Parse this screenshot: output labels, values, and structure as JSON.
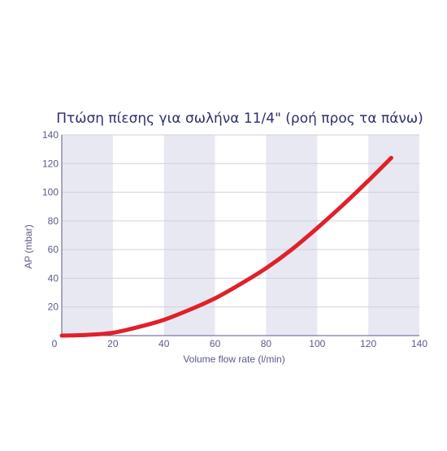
{
  "chart_data": {
    "type": "line",
    "title": "Πτώση πίεσης για σωλήνα 11/4\" (ροή προς τα πάνω)",
    "xlabel": "Volume flow rate (l/min)",
    "ylabel": "AP (mbar)",
    "xlim": [
      0,
      140
    ],
    "ylim": [
      0,
      140
    ],
    "xticks": [
      0,
      20,
      40,
      60,
      80,
      100,
      120,
      140
    ],
    "yticks": [
      20,
      40,
      60,
      80,
      100,
      120,
      140
    ],
    "xtick_labels": [
      "0",
      "20",
      "40",
      "60",
      "80",
      "100",
      "120",
      "140"
    ],
    "ytick_labels": [
      "20",
      "40",
      "60",
      "80",
      "100",
      "120",
      "140"
    ],
    "shaded_bands": [
      [
        0,
        20
      ],
      [
        40,
        60
      ],
      [
        80,
        100
      ],
      [
        120,
        140
      ]
    ],
    "grid": true,
    "series": [
      {
        "x": [
          10,
          20,
          30,
          40,
          50,
          60,
          70,
          80,
          90,
          100,
          110,
          120,
          129
        ],
        "y": [
          0.5,
          2,
          6,
          11,
          18,
          26,
          36,
          47,
          60,
          75,
          91,
          108,
          124
        ]
      }
    ],
    "colors": {
      "line": "#e0202a",
      "band": "#e8e8f2",
      "grid": "#d0d0de",
      "axis": "#5a5a8a",
      "title": "#2f2f6f"
    }
  }
}
